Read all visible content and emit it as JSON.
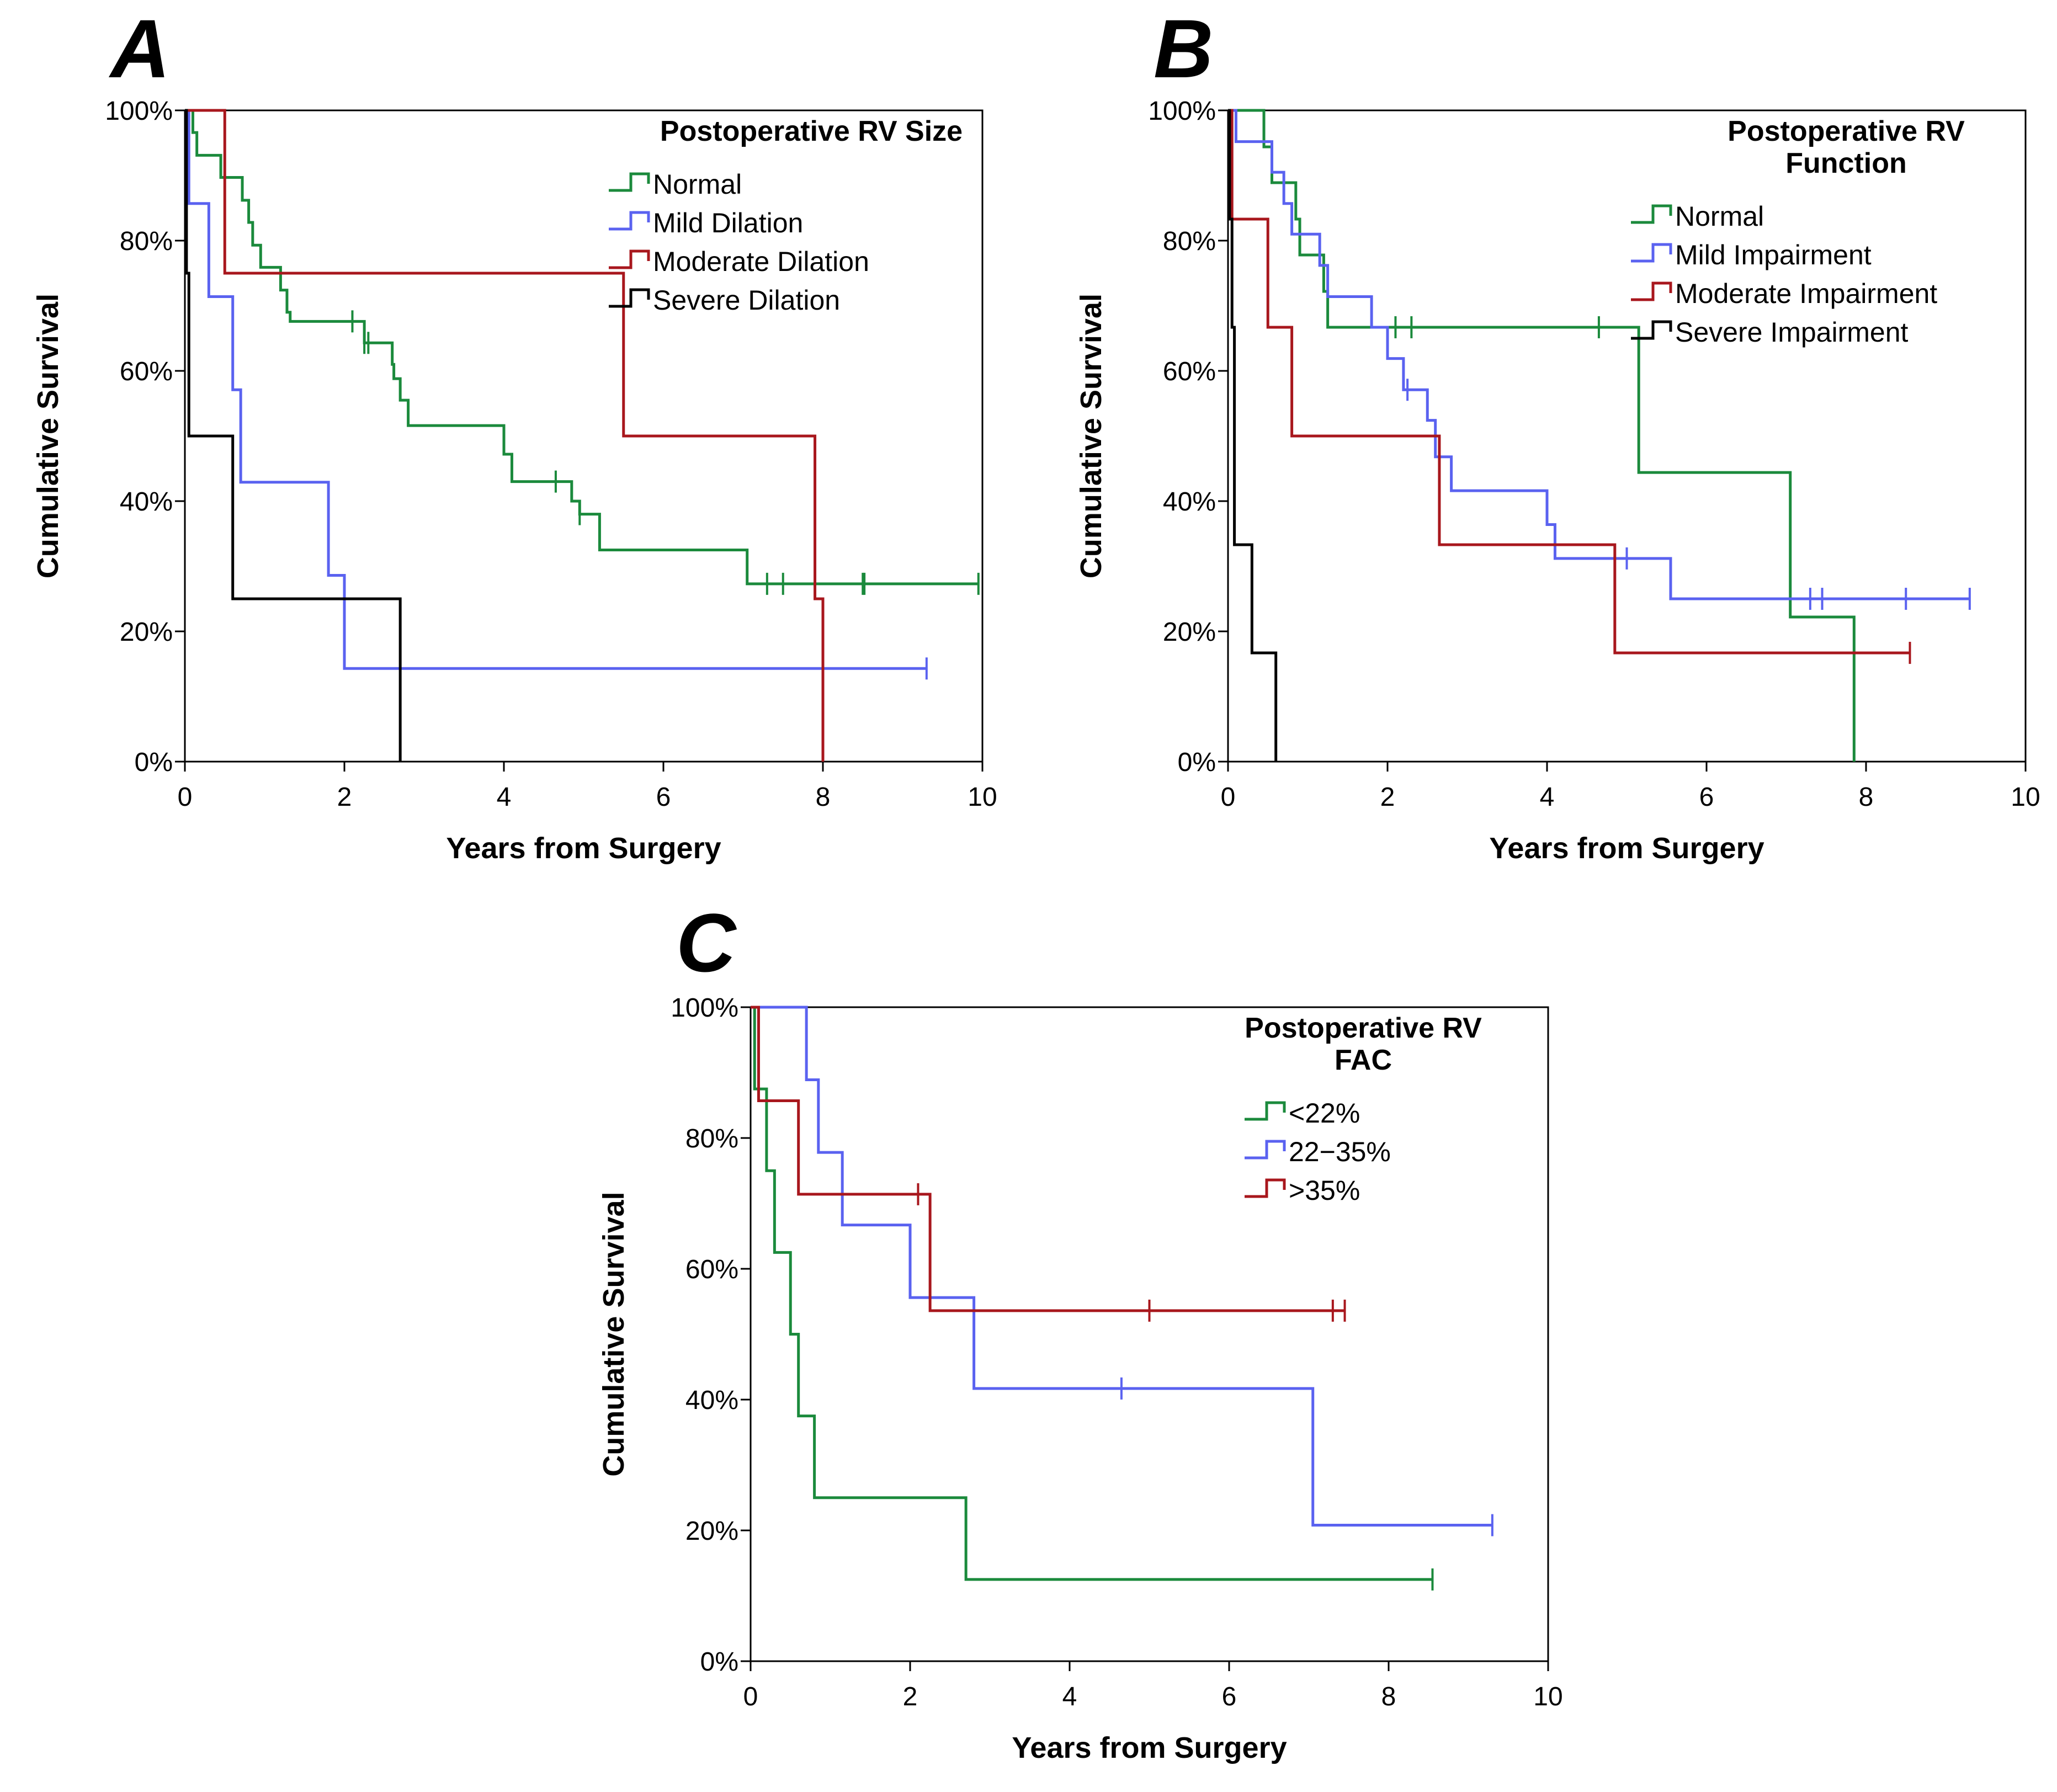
{
  "chart_data": [
    {
      "panel": "A",
      "type": "line",
      "step": true,
      "legend_title_lines": [
        "Postoperative RV Size"
      ],
      "legend_position": "top-right",
      "xlabel": "Years from Surgery",
      "ylabel": "Cumulative Survival",
      "xlim": [
        0,
        10
      ],
      "ylim": [
        0,
        100
      ],
      "x_ticks": [
        0,
        2,
        4,
        6,
        8,
        10
      ],
      "y_ticks": [
        0,
        20,
        40,
        60,
        80,
        100
      ],
      "y_tick_labels": [
        "0%",
        "20%",
        "40%",
        "60%",
        "80%",
        "100%"
      ],
      "grid": false,
      "series": [
        {
          "name": "Normal",
          "color": "#1b8a3c",
          "steps": [
            [
              0,
              100
            ],
            [
              0.1,
              96.6
            ],
            [
              0.15,
              93.1
            ],
            [
              0.45,
              89.7
            ],
            [
              0.72,
              86.2
            ],
            [
              0.8,
              82.8
            ],
            [
              0.85,
              79.3
            ],
            [
              0.95,
              75.9
            ],
            [
              1.2,
              72.4
            ],
            [
              1.28,
              69.0
            ],
            [
              1.32,
              67.6
            ],
            [
              2.25,
              64.3
            ],
            [
              2.6,
              61.0
            ],
            [
              2.62,
              58.8
            ],
            [
              2.7,
              55.5
            ],
            [
              2.8,
              51.6
            ],
            [
              4.0,
              47.2
            ],
            [
              4.1,
              43.0
            ],
            [
              4.85,
              40.0
            ],
            [
              4.95,
              38.0
            ],
            [
              5.2,
              32.5
            ],
            [
              7.05,
              27.3
            ],
            [
              9.95,
              27.3
            ]
          ],
          "censored": [
            [
              2.1,
              67.6
            ],
            [
              2.25,
              64.3
            ],
            [
              2.3,
              64.3
            ],
            [
              4.65,
              43.0
            ],
            [
              4.95,
              38.0
            ],
            [
              7.3,
              27.3
            ],
            [
              7.5,
              27.3
            ],
            [
              8.5,
              27.3
            ],
            [
              8.52,
              27.3
            ],
            [
              9.95,
              27.3
            ]
          ]
        },
        {
          "name": "Mild Dilation",
          "color": "#5a62f0",
          "steps": [
            [
              0,
              100
            ],
            [
              0.05,
              85.7
            ],
            [
              0.3,
              71.4
            ],
            [
              0.6,
              57.1
            ],
            [
              0.7,
              42.9
            ],
            [
              1.8,
              28.6
            ],
            [
              2.0,
              14.3
            ],
            [
              9.3,
              14.3
            ]
          ],
          "censored": [
            [
              9.3,
              14.3
            ]
          ]
        },
        {
          "name": "Moderate Dilation",
          "color": "#a8171d",
          "steps": [
            [
              0,
              100
            ],
            [
              0.5,
              75
            ],
            [
              5.5,
              50
            ],
            [
              7.9,
              25
            ],
            [
              8.0,
              0
            ]
          ],
          "censored": []
        },
        {
          "name": "Severe Dilation",
          "color": "#000000",
          "steps": [
            [
              0,
              100
            ],
            [
              0.02,
              75
            ],
            [
              0.05,
              50
            ],
            [
              0.6,
              25
            ],
            [
              2.7,
              0
            ]
          ],
          "censored": []
        }
      ]
    },
    {
      "panel": "B",
      "type": "line",
      "step": true,
      "legend_title_lines": [
        "Postoperative RV",
        "Function"
      ],
      "legend_position": "top-right",
      "xlabel": "Years from Surgery",
      "ylabel": "Cumulative Survival",
      "xlim": [
        0,
        10
      ],
      "ylim": [
        0,
        100
      ],
      "x_ticks": [
        0,
        2,
        4,
        6,
        8,
        10
      ],
      "y_ticks": [
        0,
        20,
        40,
        60,
        80,
        100
      ],
      "y_tick_labels": [
        "0%",
        "20%",
        "40%",
        "60%",
        "80%",
        "100%"
      ],
      "grid": false,
      "series": [
        {
          "name": "Normal",
          "color": "#1b8a3c",
          "steps": [
            [
              0,
              100
            ],
            [
              0.45,
              94.4
            ],
            [
              0.55,
              88.9
            ],
            [
              0.85,
              83.3
            ],
            [
              0.9,
              77.8
            ],
            [
              1.2,
              72.2
            ],
            [
              1.25,
              66.7
            ],
            [
              5.15,
              44.4
            ],
            [
              7.05,
              22.2
            ],
            [
              7.85,
              0
            ]
          ],
          "censored": [
            [
              2.1,
              66.7
            ],
            [
              2.3,
              66.7
            ],
            [
              4.65,
              66.7
            ]
          ]
        },
        {
          "name": "Mild Impairment",
          "color": "#5a62f0",
          "steps": [
            [
              0,
              100
            ],
            [
              0.1,
              95.2
            ],
            [
              0.55,
              90.5
            ],
            [
              0.7,
              85.7
            ],
            [
              0.8,
              81.0
            ],
            [
              1.15,
              76.2
            ],
            [
              1.25,
              71.4
            ],
            [
              1.8,
              66.7
            ],
            [
              2.0,
              61.9
            ],
            [
              2.2,
              57.1
            ],
            [
              2.5,
              52.4
            ],
            [
              2.6,
              46.8
            ],
            [
              2.8,
              41.6
            ],
            [
              4.0,
              36.4
            ],
            [
              4.1,
              31.2
            ],
            [
              5.55,
              25.0
            ],
            [
              9.3,
              25.0
            ]
          ],
          "censored": [
            [
              2.25,
              57.1
            ],
            [
              5.0,
              31.2
            ],
            [
              7.3,
              25.0
            ],
            [
              7.45,
              25.0
            ],
            [
              8.5,
              25.0
            ],
            [
              9.3,
              25.0
            ]
          ]
        },
        {
          "name": "Moderate Impairment",
          "color": "#a8171d",
          "steps": [
            [
              0,
              100
            ],
            [
              0.05,
              83.3
            ],
            [
              0.5,
              66.7
            ],
            [
              0.8,
              50
            ],
            [
              2.65,
              33.3
            ],
            [
              4.85,
              16.7
            ],
            [
              8.55,
              16.7
            ]
          ],
          "censored": [
            [
              8.55,
              16.7
            ]
          ]
        },
        {
          "name": "Severe Impairment",
          "color": "#000000",
          "steps": [
            [
              0,
              100
            ],
            [
              0.02,
              83.3
            ],
            [
              0.05,
              66.7
            ],
            [
              0.08,
              33.3
            ],
            [
              0.3,
              16.7
            ],
            [
              0.6,
              0
            ]
          ],
          "censored": []
        }
      ]
    },
    {
      "panel": "C",
      "type": "line",
      "step": true,
      "legend_title_lines": [
        "Postoperative RV",
        "FAC"
      ],
      "legend_position": "top-right",
      "xlabel": "Years from Surgery",
      "ylabel": "Cumulative Survival",
      "xlim": [
        0,
        10
      ],
      "ylim": [
        0,
        100
      ],
      "x_ticks": [
        0,
        2,
        4,
        6,
        8,
        10
      ],
      "y_ticks": [
        0,
        20,
        40,
        60,
        80,
        100
      ],
      "y_tick_labels": [
        "0%",
        "20%",
        "40%",
        "60%",
        "80%",
        "100%"
      ],
      "grid": false,
      "series": [
        {
          "name": "<22%",
          "color": "#1b8a3c",
          "steps": [
            [
              0,
              100
            ],
            [
              0.05,
              87.5
            ],
            [
              0.2,
              75
            ],
            [
              0.3,
              62.5
            ],
            [
              0.5,
              50
            ],
            [
              0.6,
              37.5
            ],
            [
              0.8,
              25
            ],
            [
              2.7,
              12.5
            ],
            [
              8.55,
              12.5
            ]
          ],
          "censored": [
            [
              8.55,
              12.5
            ]
          ]
        },
        {
          "name": "22−35%",
          "color": "#5a62f0",
          "steps": [
            [
              0,
              100
            ],
            [
              0.7,
              88.9
            ],
            [
              0.85,
              77.8
            ],
            [
              1.15,
              66.7
            ],
            [
              2.0,
              55.6
            ],
            [
              2.8,
              41.7
            ],
            [
              7.05,
              20.8
            ],
            [
              9.3,
              20.8
            ]
          ],
          "censored": [
            [
              4.65,
              41.7
            ],
            [
              9.3,
              20.8
            ]
          ]
        },
        {
          "name": ">35%",
          "color": "#a8171d",
          "steps": [
            [
              0,
              100
            ],
            [
              0.1,
              85.7
            ],
            [
              0.6,
              71.4
            ],
            [
              2.25,
              53.6
            ],
            [
              7.45,
              53.6
            ]
          ],
          "censored": [
            [
              2.1,
              71.4
            ],
            [
              5.0,
              53.6
            ],
            [
              7.3,
              53.6
            ],
            [
              7.45,
              53.6
            ]
          ]
        }
      ]
    }
  ]
}
